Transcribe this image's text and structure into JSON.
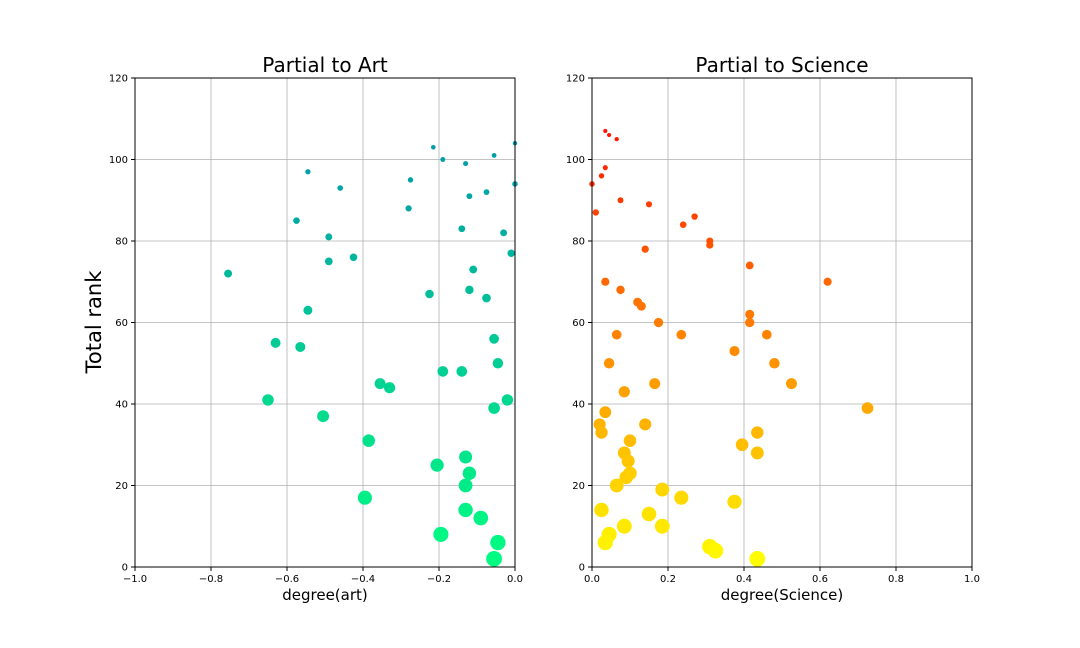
{
  "ylabel": "Total rank",
  "chart_data": [
    {
      "type": "scatter",
      "title": "Partial to Art",
      "xlabel": "degree(art)",
      "ylabel": "Total rank",
      "xlim": [
        -1.0,
        0.0
      ],
      "ylim": [
        0,
        120
      ],
      "xticks": [
        -1.0,
        -0.8,
        -0.6,
        -0.4,
        -0.2,
        0.0
      ],
      "xtick_labels": [
        "−1.0",
        "−0.8",
        "−0.6",
        "−0.4",
        "−0.2",
        "0.0"
      ],
      "yticks": [
        0,
        20,
        40,
        60,
        80,
        100,
        120
      ],
      "ytick_labels": [
        "0",
        "20",
        "40",
        "60",
        "80",
        "100",
        "120"
      ],
      "grid": true,
      "colormap": "winter (teal to green, by rank)",
      "series": [
        {
          "points": [
            {
              "x": 0.0,
              "y": 104
            },
            {
              "x": -0.215,
              "y": 103
            },
            {
              "x": -0.055,
              "y": 101
            },
            {
              "x": -0.19,
              "y": 100
            },
            {
              "x": -0.13,
              "y": 99
            },
            {
              "x": -0.545,
              "y": 97
            },
            {
              "x": -0.275,
              "y": 95
            },
            {
              "x": 0.0,
              "y": 94
            },
            {
              "x": -0.46,
              "y": 93
            },
            {
              "x": -0.075,
              "y": 92
            },
            {
              "x": -0.12,
              "y": 91
            },
            {
              "x": -0.28,
              "y": 88
            },
            {
              "x": -0.575,
              "y": 85
            },
            {
              "x": -0.14,
              "y": 83
            },
            {
              "x": -0.03,
              "y": 82
            },
            {
              "x": -0.49,
              "y": 81
            },
            {
              "x": -0.01,
              "y": 77
            },
            {
              "x": -0.425,
              "y": 76
            },
            {
              "x": -0.49,
              "y": 75
            },
            {
              "x": -0.11,
              "y": 73
            },
            {
              "x": -0.755,
              "y": 72
            },
            {
              "x": -0.12,
              "y": 68
            },
            {
              "x": -0.225,
              "y": 67
            },
            {
              "x": -0.075,
              "y": 66
            },
            {
              "x": -0.545,
              "y": 63
            },
            {
              "x": -0.055,
              "y": 56
            },
            {
              "x": -0.63,
              "y": 55
            },
            {
              "x": -0.565,
              "y": 54
            },
            {
              "x": -0.045,
              "y": 50
            },
            {
              "x": -0.19,
              "y": 48
            },
            {
              "x": -0.14,
              "y": 48
            },
            {
              "x": -0.355,
              "y": 45
            },
            {
              "x": -0.33,
              "y": 44
            },
            {
              "x": -0.65,
              "y": 41
            },
            {
              "x": -0.02,
              "y": 41
            },
            {
              "x": -0.055,
              "y": 39
            },
            {
              "x": -0.505,
              "y": 37
            },
            {
              "x": -0.385,
              "y": 31
            },
            {
              "x": -0.13,
              "y": 27
            },
            {
              "x": -0.205,
              "y": 25
            },
            {
              "x": -0.12,
              "y": 23
            },
            {
              "x": -0.13,
              "y": 20
            },
            {
              "x": -0.395,
              "y": 17
            },
            {
              "x": -0.13,
              "y": 14
            },
            {
              "x": -0.09,
              "y": 12
            },
            {
              "x": -0.195,
              "y": 8
            },
            {
              "x": -0.045,
              "y": 6
            },
            {
              "x": -0.055,
              "y": 2
            }
          ]
        }
      ]
    },
    {
      "type": "scatter",
      "title": "Partial to Science",
      "xlabel": "degree(Science)",
      "ylabel": "",
      "xlim": [
        0.0,
        1.0
      ],
      "ylim": [
        0,
        120
      ],
      "xticks": [
        0.0,
        0.2,
        0.4,
        0.6,
        0.8,
        1.0
      ],
      "xtick_labels": [
        "0.0",
        "0.2",
        "0.4",
        "0.6",
        "0.8",
        "1.0"
      ],
      "yticks": [
        0,
        20,
        40,
        60,
        80,
        100,
        120
      ],
      "ytick_labels": [
        "0",
        "20",
        "40",
        "60",
        "80",
        "100",
        "120"
      ],
      "grid": true,
      "colormap": "autumn (red to yellow, by rank)",
      "series": [
        {
          "points": [
            {
              "x": 0.035,
              "y": 107
            },
            {
              "x": 0.045,
              "y": 106
            },
            {
              "x": 0.065,
              "y": 105
            },
            {
              "x": 0.035,
              "y": 98
            },
            {
              "x": 0.025,
              "y": 96
            },
            {
              "x": 0.0,
              "y": 94
            },
            {
              "x": 0.075,
              "y": 90
            },
            {
              "x": 0.15,
              "y": 89
            },
            {
              "x": 0.01,
              "y": 87
            },
            {
              "x": 0.27,
              "y": 86
            },
            {
              "x": 0.24,
              "y": 84
            },
            {
              "x": 0.31,
              "y": 80
            },
            {
              "x": 0.31,
              "y": 79
            },
            {
              "x": 0.14,
              "y": 78
            },
            {
              "x": 0.415,
              "y": 74
            },
            {
              "x": 0.035,
              "y": 70
            },
            {
              "x": 0.62,
              "y": 70
            },
            {
              "x": 0.075,
              "y": 68
            },
            {
              "x": 0.12,
              "y": 65
            },
            {
              "x": 0.13,
              "y": 64
            },
            {
              "x": 0.415,
              "y": 62
            },
            {
              "x": 0.175,
              "y": 60
            },
            {
              "x": 0.415,
              "y": 60
            },
            {
              "x": 0.065,
              "y": 57
            },
            {
              "x": 0.235,
              "y": 57
            },
            {
              "x": 0.46,
              "y": 57
            },
            {
              "x": 0.375,
              "y": 53
            },
            {
              "x": 0.045,
              "y": 50
            },
            {
              "x": 0.48,
              "y": 50
            },
            {
              "x": 0.165,
              "y": 45
            },
            {
              "x": 0.525,
              "y": 45
            },
            {
              "x": 0.085,
              "y": 43
            },
            {
              "x": 0.725,
              "y": 39
            },
            {
              "x": 0.035,
              "y": 38
            },
            {
              "x": 0.02,
              "y": 35
            },
            {
              "x": 0.14,
              "y": 35
            },
            {
              "x": 0.025,
              "y": 33
            },
            {
              "x": 0.435,
              "y": 33
            },
            {
              "x": 0.1,
              "y": 31
            },
            {
              "x": 0.395,
              "y": 30
            },
            {
              "x": 0.085,
              "y": 28
            },
            {
              "x": 0.435,
              "y": 28
            },
            {
              "x": 0.095,
              "y": 26
            },
            {
              "x": 0.1,
              "y": 23
            },
            {
              "x": 0.09,
              "y": 22
            },
            {
              "x": 0.065,
              "y": 20
            },
            {
              "x": 0.185,
              "y": 19
            },
            {
              "x": 0.235,
              "y": 17
            },
            {
              "x": 0.375,
              "y": 16
            },
            {
              "x": 0.025,
              "y": 14
            },
            {
              "x": 0.15,
              "y": 13
            },
            {
              "x": 0.085,
              "y": 10
            },
            {
              "x": 0.185,
              "y": 10
            },
            {
              "x": 0.045,
              "y": 8
            },
            {
              "x": 0.035,
              "y": 6
            },
            {
              "x": 0.31,
              "y": 5
            },
            {
              "x": 0.325,
              "y": 4
            },
            {
              "x": 0.435,
              "y": 2
            }
          ]
        }
      ]
    }
  ]
}
